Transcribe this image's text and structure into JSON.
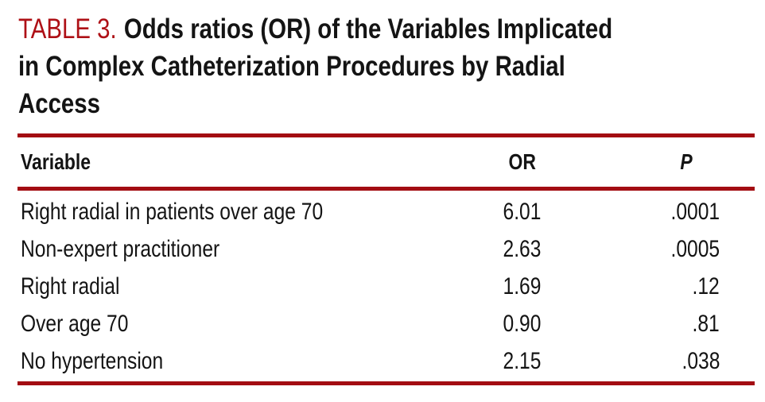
{
  "table": {
    "label": "TABLE 3.",
    "title_lines": [
      "Odds ratios (OR) of the Variables Implicated",
      "in Complex Catheterization Procedures by Radial",
      "Access"
    ],
    "columns": [
      "Variable",
      "OR",
      "P"
    ],
    "rows": [
      {
        "variable": "Right radial in patients over age 70",
        "or": "6.01",
        "p": ".0001"
      },
      {
        "variable": "Non-expert practitioner",
        "or": "2.63",
        "p": ".0005"
      },
      {
        "variable": "Right radial",
        "or": "1.69",
        "p": ".12"
      },
      {
        "variable": "Over age 70",
        "or": "0.90",
        "p": ".81"
      },
      {
        "variable": "No hypertension",
        "or": "2.15",
        "p": ".038"
      }
    ]
  },
  "colors": {
    "title_label_red": "#ae1016",
    "rule_red": "#a30d12",
    "text": "#141414",
    "background": "#ffffff"
  }
}
